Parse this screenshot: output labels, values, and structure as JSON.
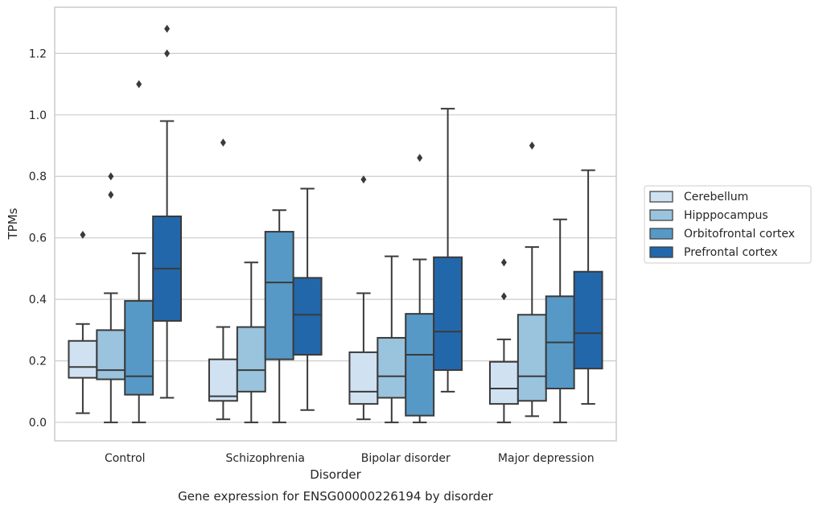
{
  "caption": "Gene expression for ENSG00000226194 by disorder",
  "chart_data": {
    "type": "box",
    "xlabel": "Disorder",
    "ylabel": "TPMs",
    "ylim": [
      -0.06,
      1.35
    ],
    "yticks": [
      "0.0",
      "0.2",
      "0.4",
      "0.6",
      "0.8",
      "1.0",
      "1.2"
    ],
    "grid": true,
    "legend_position": "right",
    "categories": [
      "Control",
      "Schizophrenia",
      "Bipolar disorder",
      "Major depression"
    ],
    "series": [
      {
        "name": "Cerebellum",
        "color": "#d0e1f2",
        "boxes": [
          {
            "whisker_low": 0.03,
            "q1": 0.145,
            "median": 0.18,
            "q3": 0.265,
            "whisker_high": 0.32,
            "outliers": [
              0.61
            ]
          },
          {
            "whisker_low": 0.01,
            "q1": 0.07,
            "median": 0.085,
            "q3": 0.205,
            "whisker_high": 0.31,
            "outliers": [
              0.91
            ]
          },
          {
            "whisker_low": 0.01,
            "q1": 0.06,
            "median": 0.1,
            "q3": 0.228,
            "whisker_high": 0.42,
            "outliers": [
              0.79
            ]
          },
          {
            "whisker_low": 0.0,
            "q1": 0.06,
            "median": 0.11,
            "q3": 0.197,
            "whisker_high": 0.27,
            "outliers": [
              0.41,
              0.52
            ]
          }
        ]
      },
      {
        "name": "Hipppocampus",
        "color": "#9ac3dd",
        "boxes": [
          {
            "whisker_low": 0.0,
            "q1": 0.14,
            "median": 0.17,
            "q3": 0.3,
            "whisker_high": 0.42,
            "outliers": [
              0.74,
              0.8
            ]
          },
          {
            "whisker_low": 0.0,
            "q1": 0.1,
            "median": 0.17,
            "q3": 0.31,
            "whisker_high": 0.52,
            "outliers": []
          },
          {
            "whisker_low": 0.0,
            "q1": 0.08,
            "median": 0.15,
            "q3": 0.275,
            "whisker_high": 0.54,
            "outliers": []
          },
          {
            "whisker_low": 0.02,
            "q1": 0.07,
            "median": 0.15,
            "q3": 0.35,
            "whisker_high": 0.57,
            "outliers": [
              0.9
            ]
          }
        ]
      },
      {
        "name": "Orbitofrontal cortex",
        "color": "#5799c6",
        "boxes": [
          {
            "whisker_low": 0.0,
            "q1": 0.09,
            "median": 0.15,
            "q3": 0.395,
            "whisker_high": 0.55,
            "outliers": [
              1.1
            ]
          },
          {
            "whisker_low": 0.0,
            "q1": 0.205,
            "median": 0.455,
            "q3": 0.62,
            "whisker_high": 0.69,
            "outliers": []
          },
          {
            "whisker_low": 0.0,
            "q1": 0.022,
            "median": 0.22,
            "q3": 0.353,
            "whisker_high": 0.53,
            "outliers": [
              0.86
            ]
          },
          {
            "whisker_low": 0.0,
            "q1": 0.11,
            "median": 0.26,
            "q3": 0.41,
            "whisker_high": 0.66,
            "outliers": []
          }
        ]
      },
      {
        "name": "Prefrontal cortex",
        "color": "#2367ab",
        "boxes": [
          {
            "whisker_low": 0.08,
            "q1": 0.33,
            "median": 0.5,
            "q3": 0.67,
            "whisker_high": 0.98,
            "outliers": [
              1.2,
              1.28
            ]
          },
          {
            "whisker_low": 0.04,
            "q1": 0.22,
            "median": 0.35,
            "q3": 0.47,
            "whisker_high": 0.76,
            "outliers": []
          },
          {
            "whisker_low": 0.1,
            "q1": 0.17,
            "median": 0.295,
            "q3": 0.537,
            "whisker_high": 1.02,
            "outliers": []
          },
          {
            "whisker_low": 0.06,
            "q1": 0.175,
            "median": 0.29,
            "q3": 0.49,
            "whisker_high": 0.82,
            "outliers": []
          }
        ]
      }
    ]
  }
}
